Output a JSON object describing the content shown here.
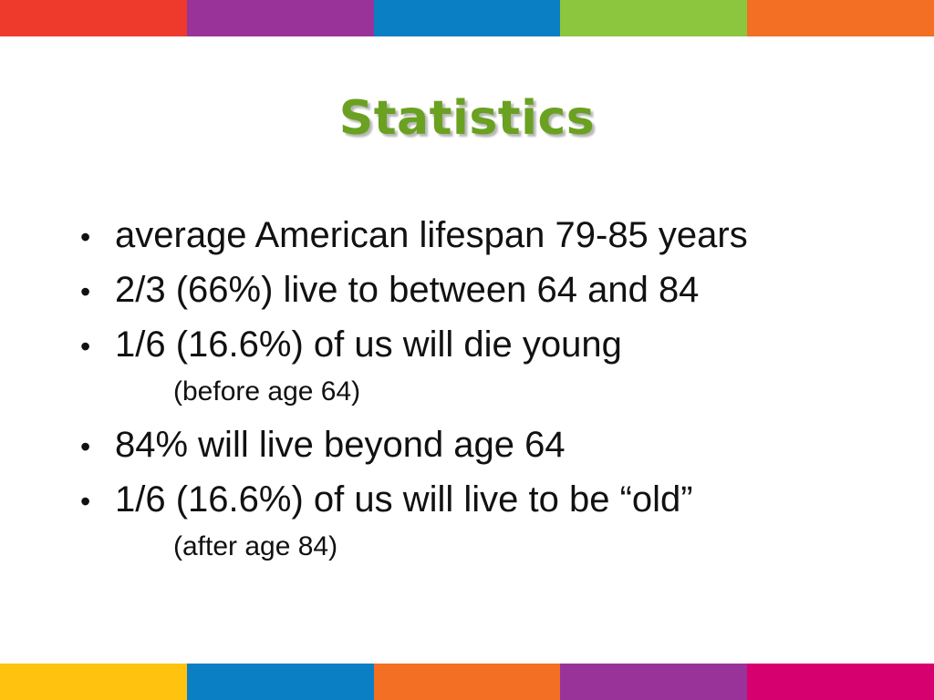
{
  "colors": {
    "title": "#6aa121",
    "top_band": [
      "#ee3a2c",
      "#993399",
      "#0a7fc4",
      "#8cc63f",
      "#f26f24"
    ],
    "bottom_band": [
      "#ffc20e",
      "#0a7fc4",
      "#f26f24",
      "#993399",
      "#d6006f"
    ]
  },
  "slide": {
    "title": "Statistics",
    "bullet_glyph": "•",
    "bullets": [
      {
        "text": "average American lifespan 79-85 years"
      },
      {
        "text": "2/3 (66%) live to between 64 and 84"
      },
      {
        "text": "1/6 (16.6%) of us will die young",
        "sub": "(before age 64)"
      },
      {
        "text": "84% will live beyond age 64"
      },
      {
        "text": "1/6 (16.6%) of us will live to be “old”",
        "sub": "(after age 84)"
      }
    ]
  }
}
